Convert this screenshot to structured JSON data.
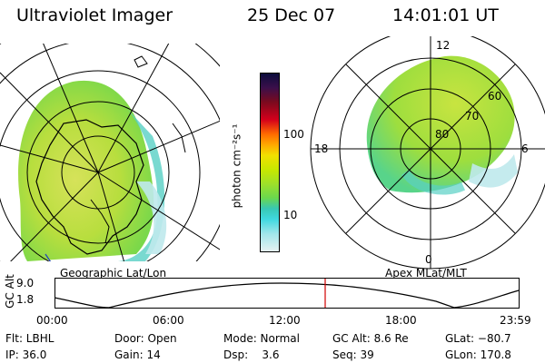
{
  "header": {
    "title": "Ultraviolet Imager",
    "date": "25 Dec 07",
    "time": "14:01:01 UT"
  },
  "colorbar": {
    "label": "photon cm⁻²s⁻¹",
    "ticks": [
      "100",
      "10"
    ]
  },
  "geo_panel": {
    "caption": "Geographic Lat/Lon"
  },
  "apex_panel": {
    "caption": "Apex MLat/MLT",
    "mlt_labels": [
      "12",
      "18",
      "6",
      "0"
    ],
    "lat_labels": [
      "60",
      "70",
      "80"
    ]
  },
  "timeline": {
    "ylabel": "GC Alt",
    "y_ticks": [
      "9.0",
      "1.8"
    ],
    "x_ticks": [
      "00:00",
      "06:00",
      "12:00",
      "18:00",
      "23:59"
    ],
    "current_time": "14:01:01"
  },
  "info": {
    "row1": [
      "Flt: LBHL",
      "Door: Open",
      "Mode: Normal",
      "GC Alt: 8.6 Re",
      "GLat: −80.7"
    ],
    "row2": [
      "IP: 36.0",
      "Gain: 14",
      "Dsp:    3.6",
      "Seq: 39",
      "GLon: 170.8"
    ]
  },
  "colors": {
    "marker": "#d00000",
    "land_outline": "#000000",
    "water_accent": "#1f3fbf"
  }
}
